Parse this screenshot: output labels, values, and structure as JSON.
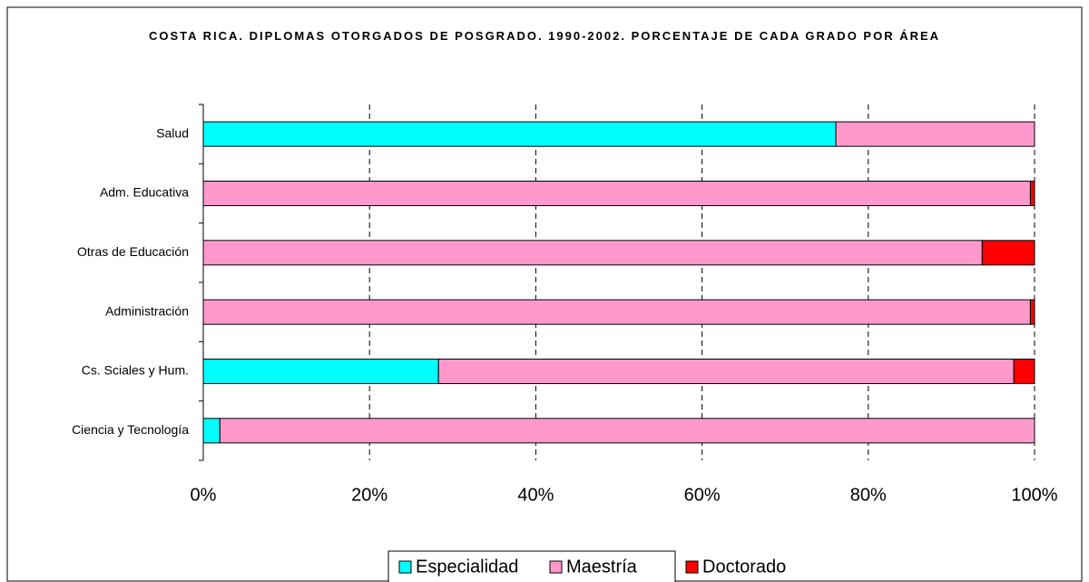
{
  "chart_data": {
    "type": "stacked_bar_horizontal",
    "title": "COSTA RICA. DIPLOMAS OTORGADOS DE POSGRADO. 1990-2002. PORCENTAJE DE CADA GRADO POR ÁREA",
    "categories": [
      "Salud",
      "Adm. Educativa",
      "Otras de Educación",
      "Administración",
      "Cs. Sciales y Hum.",
      "Ciencia y Tecnología"
    ],
    "series": [
      {
        "name": "Especialidad",
        "color": "#00ffff",
        "values": [
          76.1,
          0,
          0,
          0,
          28.3,
          2.0
        ]
      },
      {
        "name": "Maestría",
        "color": "#ff99cc",
        "values": [
          23.9,
          99.5,
          93.7,
          99.5,
          69.2,
          98.0
        ]
      },
      {
        "name": "Doctorado",
        "color": "#ff0000",
        "values": [
          0,
          0.5,
          6.3,
          0.5,
          2.5,
          0
        ]
      }
    ],
    "xlim": [
      0,
      100
    ],
    "xticks": [
      {
        "value": 0,
        "label": "0%"
      },
      {
        "value": 20,
        "label": "20%"
      },
      {
        "value": 40,
        "label": "40%"
      },
      {
        "value": 60,
        "label": "60%"
      },
      {
        "value": 80,
        "label": "80%"
      },
      {
        "value": 100,
        "label": "100%"
      }
    ],
    "grid": true,
    "legend": "bottom"
  }
}
